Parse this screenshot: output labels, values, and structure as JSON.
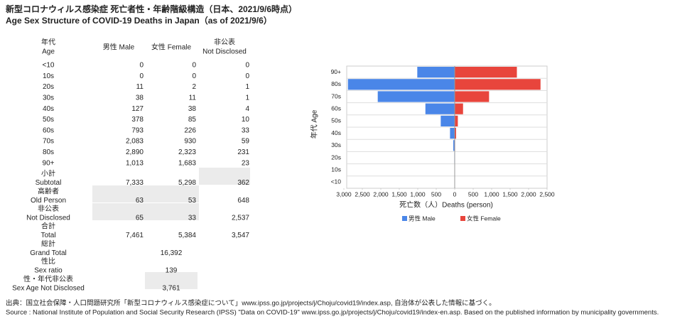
{
  "header": {
    "title": "新型コロナウィルス感染症 死亡者性・年齢階級構造（日本、2021/9/6時点）",
    "subtitle": "Age Sex Structure of COVID-19 Deaths in Japan（as of 2021/9/6）"
  },
  "table": {
    "columns": [
      [
        "年代",
        "Age"
      ],
      [
        "男性 Male"
      ],
      [
        "女性 Female"
      ],
      [
        "非公表",
        "Not Disclosed"
      ]
    ],
    "rows": [
      {
        "label": [
          "<10"
        ],
        "cells": [
          "0",
          "0",
          "0"
        ]
      },
      {
        "label": [
          "10s"
        ],
        "cells": [
          "0",
          "0",
          "0"
        ]
      },
      {
        "label": [
          "20s"
        ],
        "cells": [
          "11",
          "2",
          "1"
        ]
      },
      {
        "label": [
          "30s"
        ],
        "cells": [
          "38",
          "11",
          "1"
        ]
      },
      {
        "label": [
          "40s"
        ],
        "cells": [
          "127",
          "38",
          "4"
        ]
      },
      {
        "label": [
          "50s"
        ],
        "cells": [
          "378",
          "85",
          "10"
        ]
      },
      {
        "label": [
          "60s"
        ],
        "cells": [
          "793",
          "226",
          "33"
        ]
      },
      {
        "label": [
          "70s"
        ],
        "cells": [
          "2,083",
          "930",
          "59"
        ]
      },
      {
        "label": [
          "80s"
        ],
        "cells": [
          "2,890",
          "2,323",
          "231"
        ]
      },
      {
        "label": [
          "90+"
        ],
        "cells": [
          "1,013",
          "1,683",
          "23"
        ]
      },
      {
        "label": [
          "小計",
          "Subtotal"
        ],
        "cells": [
          "7,333",
          "5,298",
          "362"
        ]
      },
      {
        "label": [
          "高齢者",
          "Old Person"
        ],
        "cells": [
          "63",
          "53",
          "648"
        ]
      },
      {
        "label": [
          "非公表",
          "Not Disclosed"
        ],
        "cells": [
          "65",
          "33",
          "2,537"
        ]
      },
      {
        "label": [
          "合計",
          "Total"
        ],
        "cells": [
          "7,461",
          "5,384",
          "3,547"
        ]
      },
      {
        "label": [
          "総計",
          "Grand Total"
        ],
        "value": "16,392"
      },
      {
        "label": [
          "性比",
          "Sex ratio"
        ],
        "value": "139"
      },
      {
        "label": [
          "性・年代非公表",
          "Sex Age Not Disclosed"
        ],
        "value": "3,761"
      }
    ]
  },
  "chart_data": {
    "type": "pyramid",
    "categories": [
      "90+",
      "80s",
      "70s",
      "60s",
      "50s",
      "40s",
      "30s",
      "20s",
      "10s",
      "<10"
    ],
    "series": [
      {
        "name": "男性 Male",
        "color": "#4a86e8",
        "side": "left",
        "values": [
          1013,
          2890,
          2083,
          793,
          378,
          127,
          38,
          11,
          0,
          0
        ]
      },
      {
        "name": "女性 Female",
        "color": "#e8453c",
        "side": "right",
        "values": [
          1683,
          2323,
          930,
          226,
          85,
          38,
          11,
          2,
          0,
          0
        ]
      }
    ],
    "xlabel": "死亡数（人）Deaths (person)",
    "ylabel": "年代 Age",
    "xlim": [
      -3000,
      2500
    ],
    "xticks": [
      {
        "value": -3000,
        "label": "3,000"
      },
      {
        "value": -2500,
        "label": "2,500"
      },
      {
        "value": -2000,
        "label": "2,000"
      },
      {
        "value": -1500,
        "label": "1,500"
      },
      {
        "value": -1000,
        "label": "1,000"
      },
      {
        "value": -500,
        "label": "500"
      },
      0,
      500,
      {
        "value": 1000,
        "label": "1,000"
      },
      {
        "value": 1500,
        "label": "1,500"
      },
      {
        "value": 2000,
        "label": "2,000"
      },
      {
        "value": 2500,
        "label": "2,500"
      }
    ],
    "grid": true,
    "legend": "bottom"
  },
  "footer": [
    "出典：国立社会保障・人口問題研究所「新型コロナウィルス感染症について」www.ipss.go.jp/projects/j/Choju/covid19/index.asp, 自治体が公表した情報に基づく。",
    "Source : National Institute of Population and Social Security Research (IPSS) \"Data on COVID-19\" www.ipss.go.jp/projects/j/Choju/covid19/index-en.asp. Based on the published information by municipality governments."
  ]
}
